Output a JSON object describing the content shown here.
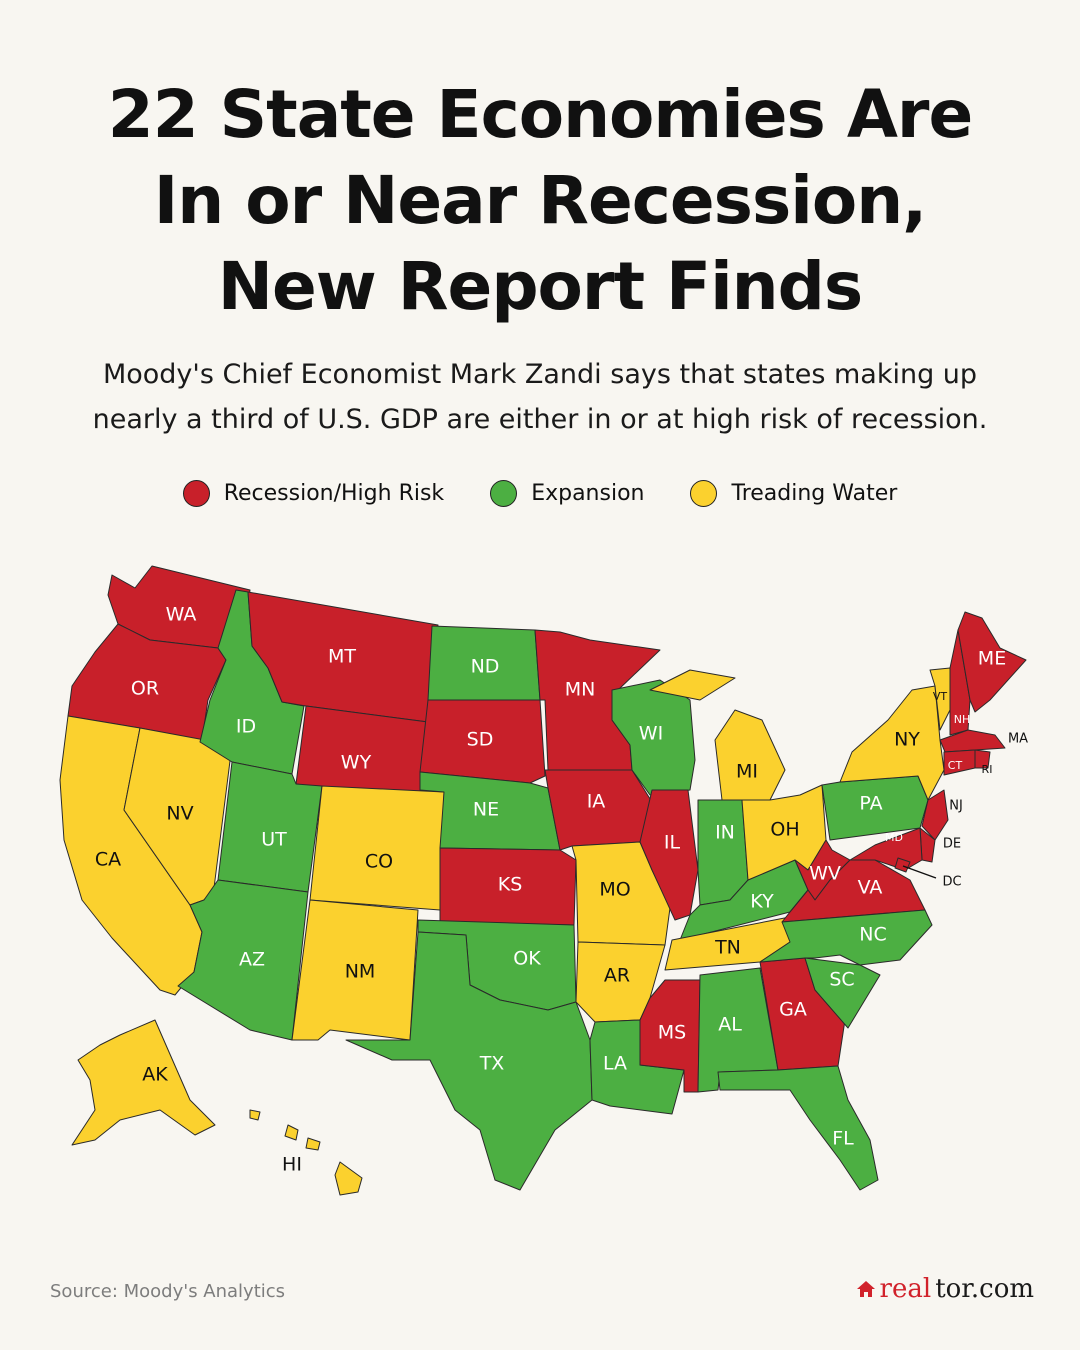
{
  "title": {
    "line1": "22 State Economies Are",
    "line2": "In or Near Recession,",
    "line3": "New Report Finds"
  },
  "subtitle": {
    "line1": "Moody's Chief Economist Mark Zandi says that states making up",
    "line2": "nearly a third of U.S. GDP are either in or at high risk of recession."
  },
  "legend": [
    {
      "label": "Recession/High Risk",
      "color": "#c8202a"
    },
    {
      "label": "Expansion",
      "color": "#4caf42"
    },
    {
      "label": "Treading Water",
      "color": "#fbd12e"
    }
  ],
  "categories": {
    "recession": "Recession/High Risk",
    "expansion": "Expansion",
    "treading": "Treading Water"
  },
  "states": [
    {
      "code": "WA",
      "status": "recession"
    },
    {
      "code": "OR",
      "status": "recession"
    },
    {
      "code": "CA",
      "status": "treading"
    },
    {
      "code": "NV",
      "status": "treading"
    },
    {
      "code": "ID",
      "status": "expansion"
    },
    {
      "code": "MT",
      "status": "recession"
    },
    {
      "code": "WY",
      "status": "recession"
    },
    {
      "code": "UT",
      "status": "expansion"
    },
    {
      "code": "AZ",
      "status": "expansion"
    },
    {
      "code": "CO",
      "status": "treading"
    },
    {
      "code": "NM",
      "status": "treading"
    },
    {
      "code": "ND",
      "status": "expansion"
    },
    {
      "code": "SD",
      "status": "recession"
    },
    {
      "code": "NE",
      "status": "expansion"
    },
    {
      "code": "KS",
      "status": "recession"
    },
    {
      "code": "OK",
      "status": "expansion"
    },
    {
      "code": "TX",
      "status": "expansion"
    },
    {
      "code": "MN",
      "status": "recession"
    },
    {
      "code": "IA",
      "status": "recession"
    },
    {
      "code": "MO",
      "status": "treading"
    },
    {
      "code": "AR",
      "status": "treading"
    },
    {
      "code": "LA",
      "status": "expansion"
    },
    {
      "code": "WI",
      "status": "expansion"
    },
    {
      "code": "IL",
      "status": "recession"
    },
    {
      "code": "MS",
      "status": "recession"
    },
    {
      "code": "MI",
      "status": "treading"
    },
    {
      "code": "IN",
      "status": "expansion"
    },
    {
      "code": "KY",
      "status": "expansion"
    },
    {
      "code": "TN",
      "status": "treading"
    },
    {
      "code": "AL",
      "status": "expansion"
    },
    {
      "code": "GA",
      "status": "recession"
    },
    {
      "code": "FL",
      "status": "expansion"
    },
    {
      "code": "OH",
      "status": "treading"
    },
    {
      "code": "WV",
      "status": "recession"
    },
    {
      "code": "VA",
      "status": "recession"
    },
    {
      "code": "NC",
      "status": "expansion"
    },
    {
      "code": "SC",
      "status": "expansion"
    },
    {
      "code": "PA",
      "status": "expansion"
    },
    {
      "code": "NY",
      "status": "treading"
    },
    {
      "code": "VT",
      "status": "treading"
    },
    {
      "code": "NH",
      "status": "recession"
    },
    {
      "code": "ME",
      "status": "recession"
    },
    {
      "code": "MA",
      "status": "recession"
    },
    {
      "code": "RI",
      "status": "recession"
    },
    {
      "code": "CT",
      "status": "recession"
    },
    {
      "code": "NJ",
      "status": "recession"
    },
    {
      "code": "DE",
      "status": "recession"
    },
    {
      "code": "MD",
      "status": "recession"
    },
    {
      "code": "DC",
      "status": "recession"
    },
    {
      "code": "AK",
      "status": "treading"
    },
    {
      "code": "HI",
      "status": "treading"
    }
  ],
  "source": "Source: Moody's Analytics",
  "brand": {
    "part1": "real",
    "part2": "tor.com"
  }
}
